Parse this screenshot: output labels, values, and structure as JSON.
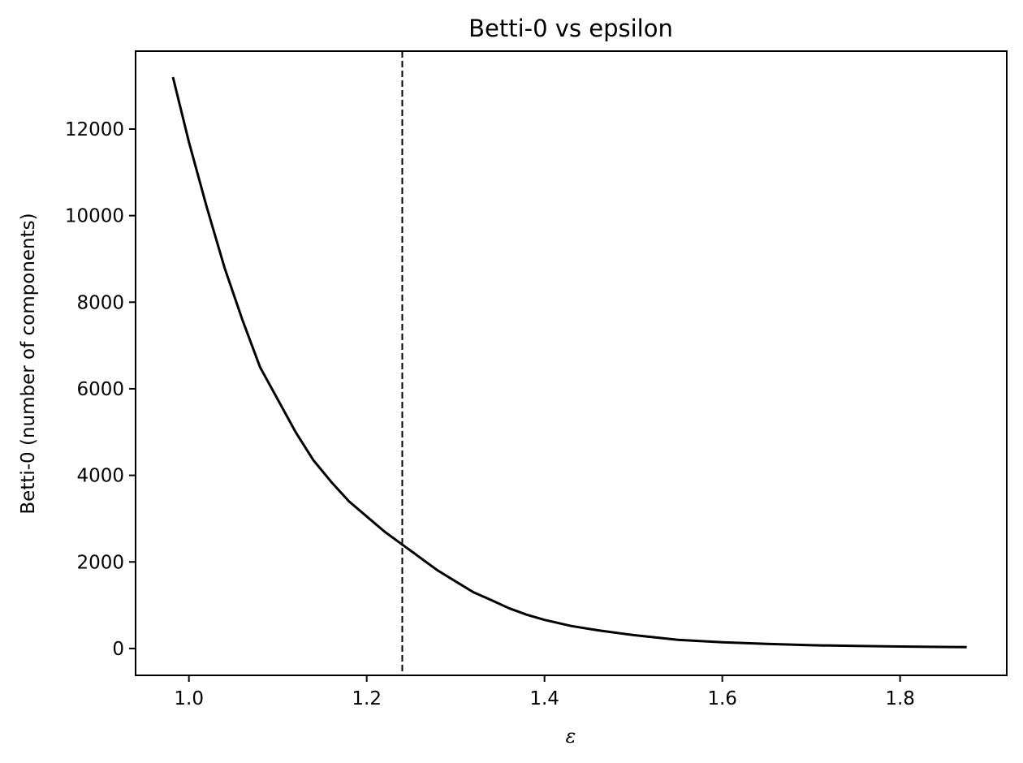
{
  "chart_data": {
    "type": "line",
    "title": "Betti-0 vs epsilon",
    "xlabel": "ε",
    "ylabel": "Betti-0 (number of components)",
    "xlim": [
      0.94,
      1.92
    ],
    "ylim": [
      -620,
      13800
    ],
    "xticks": [
      1.0,
      1.2,
      1.4,
      1.6,
      1.8
    ],
    "xtick_labels": [
      "1.0",
      "1.2",
      "1.4",
      "1.6",
      "1.8"
    ],
    "yticks": [
      0,
      2000,
      4000,
      6000,
      8000,
      10000,
      12000
    ],
    "ytick_labels": [
      "0",
      "2000",
      "4000",
      "6000",
      "8000",
      "10000",
      "12000"
    ],
    "grid": false,
    "legend": "none",
    "colors": {
      "line": "#000000",
      "reference_line": "#000000",
      "background": "#ffffff"
    },
    "reference_line": {
      "orientation": "vertical",
      "x": 1.24,
      "style": "dashed"
    },
    "series": [
      {
        "x": [
          0.982,
          1.0,
          1.02,
          1.04,
          1.06,
          1.08,
          1.1,
          1.12,
          1.14,
          1.16,
          1.18,
          1.2,
          1.22,
          1.24,
          1.26,
          1.28,
          1.3,
          1.32,
          1.34,
          1.36,
          1.38,
          1.4,
          1.43,
          1.46,
          1.5,
          1.55,
          1.6,
          1.65,
          1.7,
          1.75,
          1.8,
          1.875
        ],
        "y": [
          13200,
          11700,
          10200,
          8800,
          7600,
          6500,
          5750,
          5000,
          4350,
          3850,
          3400,
          3050,
          2700,
          2400,
          2100,
          1800,
          1550,
          1300,
          1120,
          930,
          780,
          660,
          520,
          420,
          310,
          200,
          145,
          105,
          75,
          58,
          45,
          30
        ]
      }
    ]
  }
}
